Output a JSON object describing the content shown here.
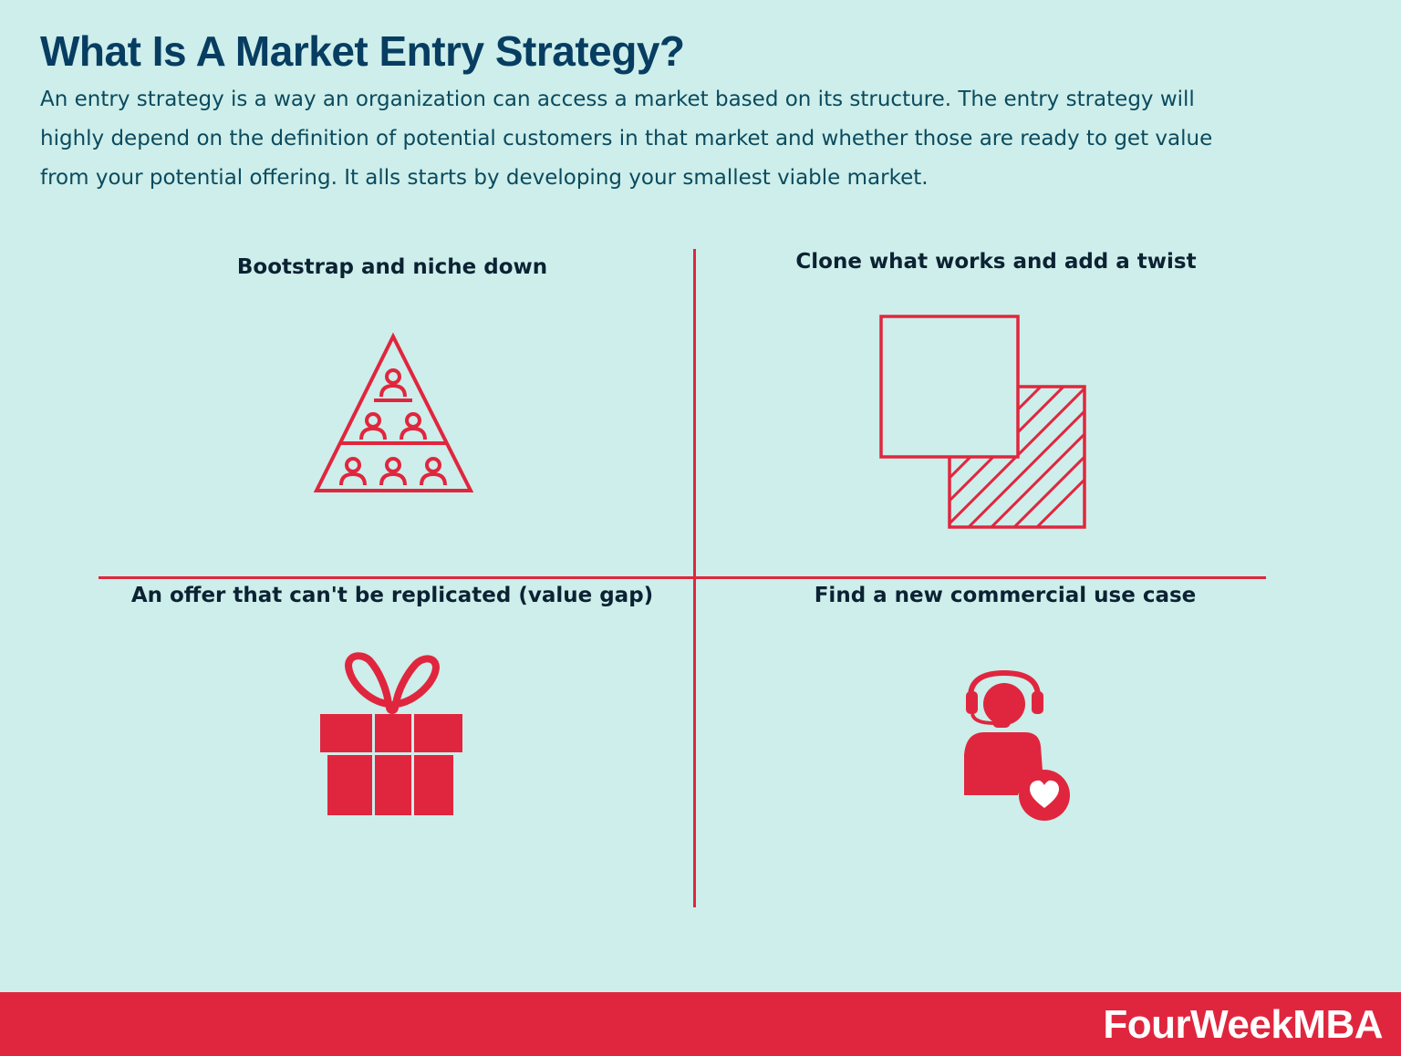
{
  "header": {
    "title": "What Is A Market Entry Strategy?",
    "description": "An entry strategy is a way an organization can access a market based on its structure. The entry strategy will highly depend on the definition of potential customers in that market and whether those are ready to get value from your potential offering. It alls starts by developing your smallest viable market."
  },
  "quadrants": [
    {
      "label": "Bootstrap and niche down",
      "icon": "people-pyramid-icon"
    },
    {
      "label": "Clone what works and add a twist",
      "icon": "overlapping-squares-icon"
    },
    {
      "label": "An offer that can't be replicated (value gap)",
      "icon": "gift-box-icon"
    },
    {
      "label": "Find a new commercial use case",
      "icon": "support-agent-heart-icon"
    }
  ],
  "footer": {
    "brand": "FourWeekMBA"
  },
  "colors": {
    "background": "#cdeeea",
    "accent": "#e0263e",
    "title": "#083d62",
    "text": "#0b4a5e"
  }
}
